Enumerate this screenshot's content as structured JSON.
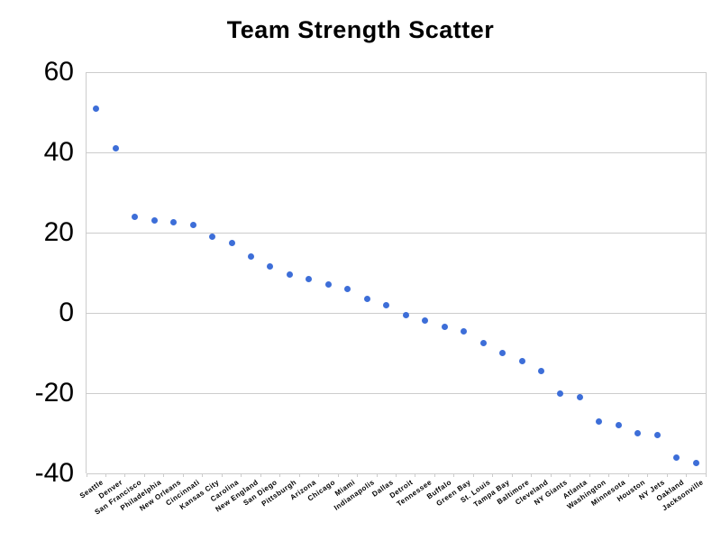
{
  "chart_data": {
    "type": "scatter",
    "title": "Team Strength Scatter",
    "xlabel": "",
    "ylabel": "",
    "ylim": [
      -40,
      60
    ],
    "yticks": [
      60,
      40,
      20,
      0,
      -20,
      -40
    ],
    "grid": true,
    "legend_position": "none",
    "point_color": "#3d6ed8",
    "gridline_color": "#cccccc",
    "axis_text_color": "#000000",
    "categories": [
      "Seattle",
      "Denver",
      "San Francisco",
      "Philadelphia",
      "New Orleans",
      "Cincinnati",
      "Kansas City",
      "Carolina",
      "New England",
      "San Diego",
      "Pittsburgh",
      "Arizona",
      "Chicago",
      "Miami",
      "Indianapolis",
      "Dallas",
      "Detroit",
      "Tennessee",
      "Buffalo",
      "Green Bay",
      "St. Louis",
      "Tampa Bay",
      "Baltimore",
      "Cleveland",
      "NY Giants",
      "Atlanta",
      "Washington",
      "Minnesota",
      "Houston",
      "NY Jets",
      "Oakland",
      "Jacksonville"
    ],
    "values": [
      51,
      41,
      24,
      23,
      22.5,
      22,
      19,
      17.5,
      14,
      11.5,
      9.5,
      8.5,
      7,
      6,
      3.5,
      2,
      -0.5,
      -2,
      -3.5,
      -4.5,
      -7.5,
      -10,
      -12,
      -14.5,
      -20,
      -21,
      -27,
      -28,
      -30,
      -30.5,
      -36,
      -37.5
    ]
  }
}
